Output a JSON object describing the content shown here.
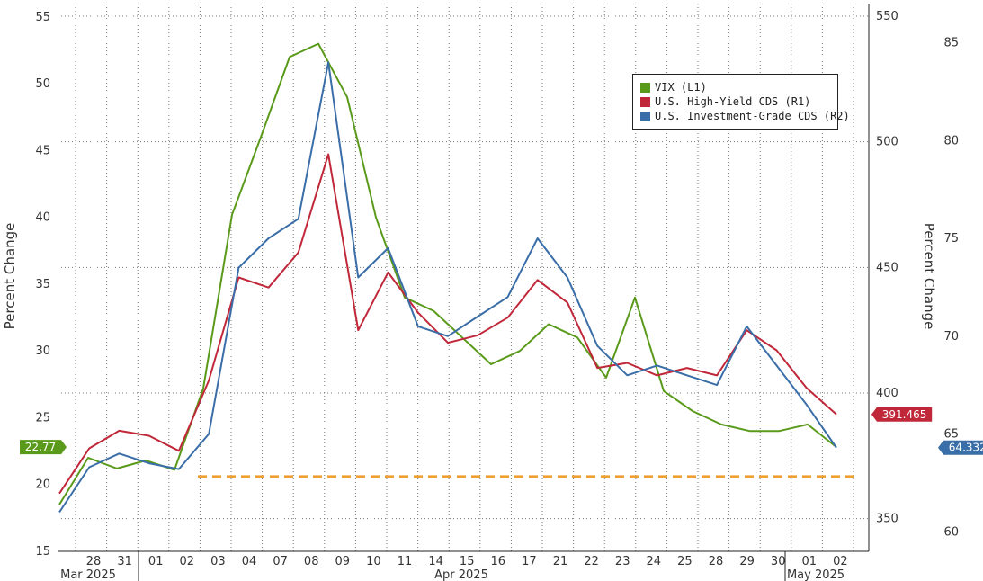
{
  "chart_data": {
    "type": "line",
    "y_left_label": "Percent Change",
    "y_right_label": "Percent Change",
    "y_left_ticks": [
      "15",
      "20",
      "25",
      "30",
      "35",
      "40",
      "45",
      "50",
      "55"
    ],
    "y_r1_ticks": [
      "350",
      "400",
      "450",
      "500",
      "550"
    ],
    "y_r2_ticks": [
      "60",
      "65",
      "70",
      "75",
      "80",
      "85"
    ],
    "y_left_range": [
      15,
      56
    ],
    "y_r1_range": [
      337,
      555
    ],
    "y_r2_range": [
      59,
      87
    ],
    "x_day_labels": [
      "28",
      "31",
      "01",
      "02",
      "03",
      "04",
      "07",
      "08",
      "09",
      "10",
      "11",
      "14",
      "15",
      "16",
      "17",
      "21",
      "22",
      "23",
      "24",
      "25",
      "28",
      "29",
      "30",
      "01",
      "02"
    ],
    "x_month_labels": [
      "Mar 2025",
      "Apr 2025",
      "May 2025"
    ],
    "legend": [
      {
        "label": "VIX (L1)",
        "color": "#5a9a1a"
      },
      {
        "label": "U.S. High-Yield CDS (R1)",
        "color": "#c0283a"
      },
      {
        "label": "U.S. Investment-Grade CDS (R2)",
        "color": "#3a6ea8"
      }
    ],
    "reference_line": {
      "axis": "left",
      "value": 20.6,
      "color": "#f0a030"
    },
    "last_value_tags": [
      {
        "series": "VIX (L1)",
        "label": "22.77",
        "color": "#5a9a1a"
      },
      {
        "series": "U.S. High-Yield CDS (R1)",
        "label": "391.465",
        "color": "#c0283a"
      },
      {
        "series": "U.S. Investment-Grade CDS (R2)",
        "label": "64.332",
        "color": "#3a6ea8"
      }
    ],
    "series": [
      {
        "name": "VIX (L1)",
        "axis": "left",
        "color": "#5a9a1a",
        "values": [
          18.5,
          22.0,
          21.2,
          21.8,
          21.1,
          27.2,
          40.2,
          46.0,
          52.0,
          53.0,
          49.0,
          40.0,
          34.0,
          33.0,
          31.0,
          29.0,
          30.0,
          32.0,
          31.0,
          28.0,
          34.0,
          27.0,
          25.5,
          24.5,
          24.0,
          24.0,
          24.5,
          22.8
        ]
      },
      {
        "name": "U.S. High-Yield CDS (R1)",
        "axis": "r1",
        "color": "#c0283a",
        "values": [
          360.0,
          378.0,
          385.0,
          383.0,
          377.0,
          405.0,
          446.0,
          442.0,
          456.0,
          495.0,
          425.0,
          448.0,
          432.0,
          420.0,
          423.0,
          430.0,
          445.0,
          436.0,
          410.0,
          412.0,
          407.0,
          410.0,
          407.0,
          425.0,
          417.0,
          402.0,
          391.5
        ]
      },
      {
        "name": "U.S. Investment-Grade CDS (R2)",
        "axis": "r2",
        "color": "#3a6ea8",
        "values": [
          61.0,
          63.3,
          64.0,
          63.5,
          63.2,
          65.0,
          73.5,
          75.0,
          76.0,
          84.0,
          73.0,
          74.5,
          70.5,
          70.0,
          71.0,
          72.0,
          75.0,
          73.0,
          69.5,
          68.0,
          68.5,
          68.0,
          67.5,
          70.5,
          68.5,
          66.5,
          64.3
        ]
      }
    ]
  }
}
